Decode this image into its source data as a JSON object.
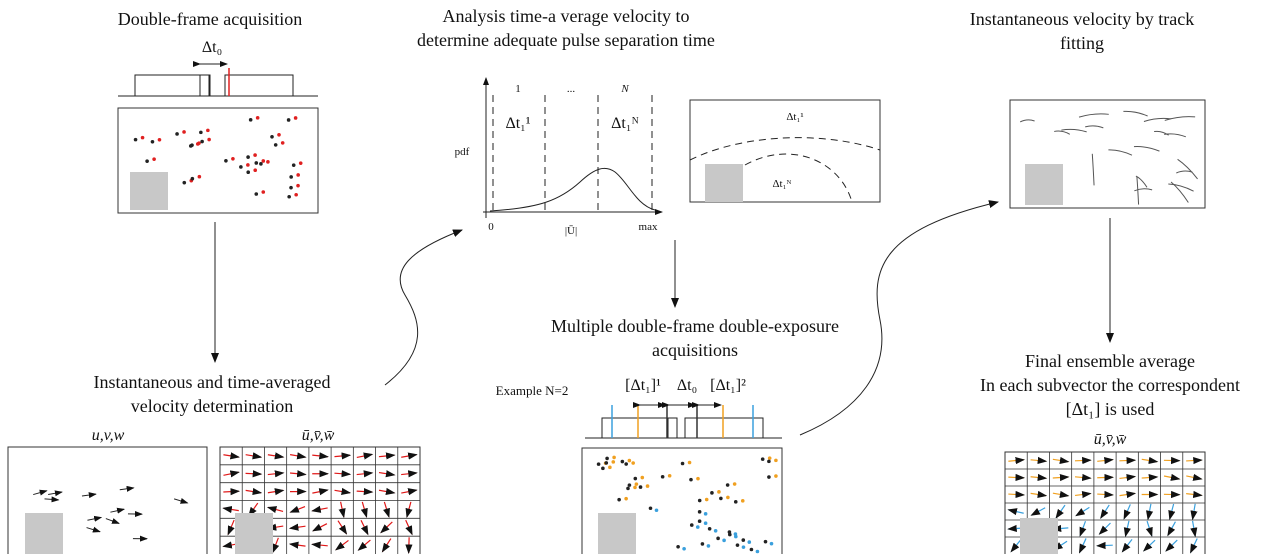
{
  "panels": {
    "acquisition": {
      "title": "Double-frame acquisition",
      "dt_label": "Δt₀"
    },
    "velocity": {
      "title_lines": [
        "Instantaneous and time-averaged",
        "velocity determination"
      ],
      "instantaneous_label": "u,v,w",
      "mean_label": "ū,v̄,w̄"
    },
    "analysis": {
      "title_lines": [
        "Analysis time-a verage velocity to",
        "determine adequate pulse separation time"
      ],
      "y_label": "pdf",
      "bin_labels": [
        "1",
        "...",
        "N"
      ],
      "dt_labels": [
        "Δt₁¹",
        "Δt₁ᴺ"
      ],
      "x_labels": [
        "0",
        "|Ū|",
        "max"
      ],
      "region_labels": [
        "Δt₁¹",
        "Δt₁ᴺ"
      ]
    },
    "multiple": {
      "title_lines": [
        "Multiple double-frame double-exposure",
        "acquisitions"
      ],
      "example": "Example N=2",
      "timing_labels": [
        "[Δt₁]¹",
        "Δt₀",
        "[Δt₁]²"
      ]
    },
    "tracking": {
      "title_lines": [
        "Instantaneous velocity by track",
        "fitting"
      ]
    },
    "ensemble": {
      "title_lines": [
        "Final ensemble average",
        "In each subvector the correspondent",
        "[Δt₁] is used"
      ],
      "mean_label": "ū,v̄,w̄"
    }
  }
}
